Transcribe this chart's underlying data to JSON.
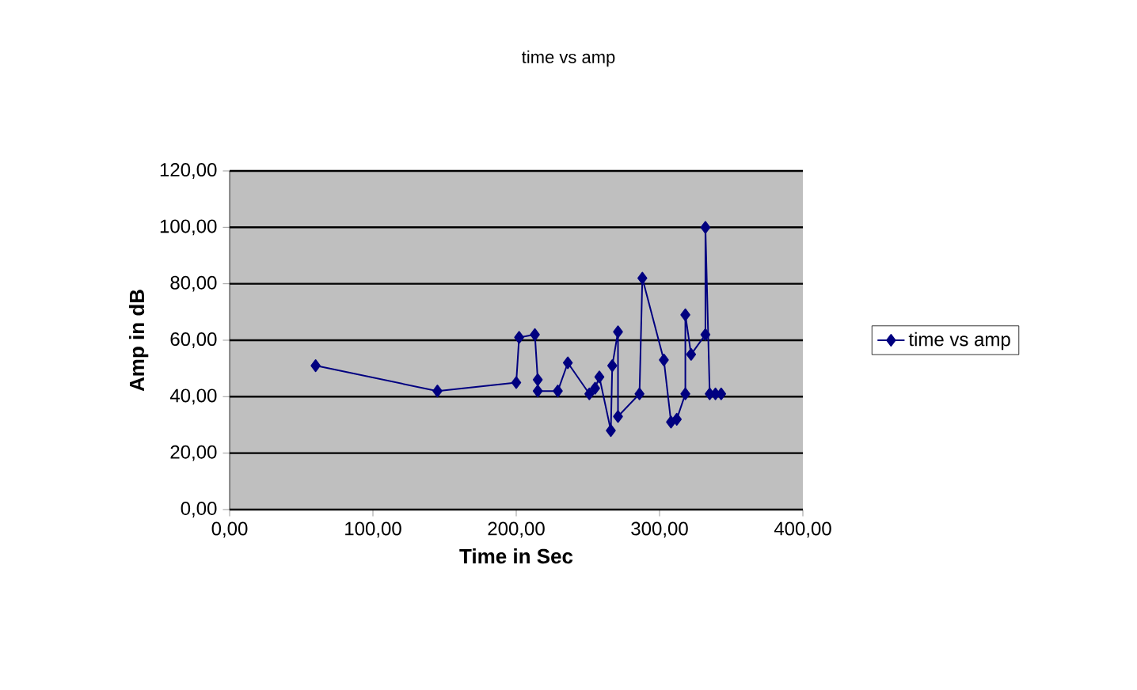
{
  "chart_data": {
    "type": "line",
    "title": "time vs amp",
    "xlabel": "Time in Sec",
    "ylabel": "Amp in dB",
    "series": [
      {
        "name": "time vs amp",
        "color": "#000080",
        "x": [
          60,
          145,
          200,
          202,
          213,
          215,
          215,
          229,
          236,
          251,
          255,
          258,
          266,
          267,
          271,
          271,
          286,
          288,
          303,
          308,
          312,
          318,
          318,
          322,
          332,
          332,
          335,
          339,
          343
        ],
        "values": [
          51,
          42,
          45,
          61,
          62,
          46,
          42,
          42,
          52,
          41,
          43,
          47,
          28,
          51,
          63,
          33,
          41,
          82,
          53,
          31,
          32,
          41,
          69,
          55,
          62,
          100,
          41,
          41,
          41
        ]
      }
    ],
    "xlim": [
      0,
      400
    ],
    "ylim": [
      0,
      120
    ],
    "xticks": [
      {
        "value": 0,
        "label": "0,00"
      },
      {
        "value": 100,
        "label": "100,00"
      },
      {
        "value": 200,
        "label": "200,00"
      },
      {
        "value": 300,
        "label": "300,00"
      },
      {
        "value": 400,
        "label": "400,00"
      }
    ],
    "yticks": [
      {
        "value": 0,
        "label": "0,00"
      },
      {
        "value": 20,
        "label": "20,00"
      },
      {
        "value": 40,
        "label": "40,00"
      },
      {
        "value": 60,
        "label": "60,00"
      },
      {
        "value": 80,
        "label": "80,00"
      },
      {
        "value": 100,
        "label": "100,00"
      },
      {
        "value": 120,
        "label": "120,00"
      }
    ],
    "grid": "y",
    "legend": "right",
    "marker": "diamond",
    "line_style": "solid"
  }
}
